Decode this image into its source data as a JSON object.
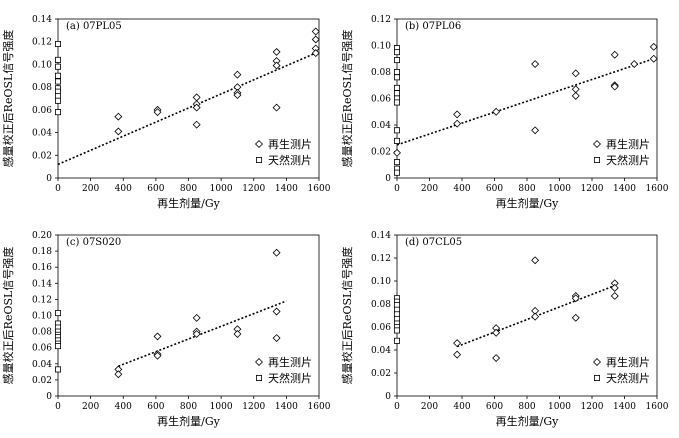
{
  "chart_data": [
    {
      "type": "scatter",
      "panel_label": "(a) 07PL05",
      "xlabel": "再生剂量/Gy",
      "ylabel": "感量校正后ReOSL信号强度",
      "xlim": [
        0,
        1600
      ],
      "ylim": [
        0,
        0.14
      ],
      "x_ticks": [
        0,
        200,
        400,
        600,
        800,
        1000,
        1200,
        1400,
        1600
      ],
      "y_ticks": [
        0,
        0.02,
        0.04,
        0.06,
        0.08,
        0.1,
        0.12,
        0.14
      ],
      "y_tick_labels": [
        "0",
        "0.02",
        "0.04",
        "0.06",
        "0.08",
        "0.10",
        "0.12",
        "0.14"
      ],
      "series": [
        {
          "name": "再生测片",
          "marker": "diamond",
          "points": [
            [
              370,
              0.054
            ],
            [
              370,
              0.041
            ],
            [
              610,
              0.06
            ],
            [
              610,
              0.058
            ],
            [
              850,
              0.071
            ],
            [
              850,
              0.065
            ],
            [
              850,
              0.062
            ],
            [
              850,
              0.047
            ],
            [
              1100,
              0.091
            ],
            [
              1100,
              0.08
            ],
            [
              1100,
              0.075
            ],
            [
              1100,
              0.073
            ],
            [
              1340,
              0.111
            ],
            [
              1340,
              0.103
            ],
            [
              1340,
              0.099
            ],
            [
              1340,
              0.062
            ],
            [
              1580,
              0.129
            ],
            [
              1580,
              0.122
            ],
            [
              1580,
              0.114
            ],
            [
              1580,
              0.11
            ]
          ]
        },
        {
          "name": "天然测片",
          "marker": "square",
          "points": [
            [
              0,
              0.118
            ],
            [
              0,
              0.104
            ],
            [
              0,
              0.098
            ],
            [
              0,
              0.09
            ],
            [
              0,
              0.085
            ],
            [
              0,
              0.079
            ],
            [
              0,
              0.076
            ],
            [
              0,
              0.072
            ],
            [
              0,
              0.068
            ],
            [
              0,
              0.058
            ]
          ]
        }
      ],
      "trend": {
        "x": [
          0,
          1580
        ],
        "y": [
          0.012,
          0.11
        ]
      },
      "legend": {
        "position": "bottom-right"
      }
    },
    {
      "type": "scatter",
      "panel_label": "(b) 07PL06",
      "xlabel": "再生剂量/Gy",
      "ylabel": "感量校正后ReOSL信号强度",
      "xlim": [
        0,
        1600
      ],
      "ylim": [
        0,
        0.12
      ],
      "x_ticks": [
        0,
        200,
        400,
        600,
        800,
        1000,
        1200,
        1400,
        1600
      ],
      "y_ticks": [
        0,
        0.02,
        0.04,
        0.06,
        0.08,
        0.1,
        0.12
      ],
      "y_tick_labels": [
        "0",
        "0.02",
        "0.04",
        "0.06",
        "0.08",
        "0.10",
        "0.12"
      ],
      "series": [
        {
          "name": "再生测片",
          "marker": "diamond",
          "points": [
            [
              0,
              0.019
            ],
            [
              370,
              0.048
            ],
            [
              370,
              0.041
            ],
            [
              610,
              0.05
            ],
            [
              850,
              0.086
            ],
            [
              850,
              0.036
            ],
            [
              1100,
              0.079
            ],
            [
              1100,
              0.067
            ],
            [
              1100,
              0.062
            ],
            [
              1340,
              0.093
            ],
            [
              1340,
              0.07
            ],
            [
              1340,
              0.069
            ],
            [
              1460,
              0.086
            ],
            [
              1580,
              0.099
            ],
            [
              1580,
              0.09
            ]
          ]
        },
        {
          "name": "天然测片",
          "marker": "square",
          "points": [
            [
              0,
              0.098
            ],
            [
              0,
              0.095
            ],
            [
              0,
              0.089
            ],
            [
              0,
              0.08
            ],
            [
              0,
              0.076
            ],
            [
              0,
              0.068
            ],
            [
              0,
              0.064
            ],
            [
              0,
              0.06
            ],
            [
              0,
              0.057
            ],
            [
              0,
              0.036
            ],
            [
              0,
              0.028
            ],
            [
              0,
              0.012
            ],
            [
              0,
              0.007
            ],
            [
              0,
              0.004
            ]
          ]
        }
      ],
      "trend": {
        "x": [
          0,
          1580
        ],
        "y": [
          0.025,
          0.09
        ]
      },
      "legend": {
        "position": "bottom-right"
      }
    },
    {
      "type": "scatter",
      "panel_label": "(c) 07S020",
      "xlabel": "再生剂量/Gy",
      "ylabel": "感量校正后ReOSL信号强度",
      "xlim": [
        0,
        1600
      ],
      "ylim": [
        0,
        0.2
      ],
      "x_ticks": [
        0,
        200,
        400,
        600,
        800,
        1000,
        1200,
        1400,
        1600
      ],
      "y_ticks": [
        0,
        0.02,
        0.04,
        0.06,
        0.08,
        0.1,
        0.12,
        0.14,
        0.16,
        0.18,
        0.2
      ],
      "y_tick_labels": [
        "0",
        "0.02",
        "0.04",
        "0.06",
        "0.08",
        "0.10",
        "0.12",
        "0.14",
        "0.16",
        "0.18",
        "0.20"
      ],
      "series": [
        {
          "name": "再生测片",
          "marker": "diamond",
          "points": [
            [
              370,
              0.033
            ],
            [
              370,
              0.027
            ],
            [
              610,
              0.074
            ],
            [
              610,
              0.052
            ],
            [
              610,
              0.05
            ],
            [
              850,
              0.097
            ],
            [
              850,
              0.08
            ],
            [
              850,
              0.077
            ],
            [
              1100,
              0.083
            ],
            [
              1100,
              0.077
            ],
            [
              1340,
              0.178
            ],
            [
              1340,
              0.105
            ],
            [
              1340,
              0.072
            ]
          ]
        },
        {
          "name": "天然测片",
          "marker": "square",
          "points": [
            [
              0,
              0.103
            ],
            [
              0,
              0.09
            ],
            [
              0,
              0.085
            ],
            [
              0,
              0.08
            ],
            [
              0,
              0.076
            ],
            [
              0,
              0.073
            ],
            [
              0,
              0.069
            ],
            [
              0,
              0.065
            ],
            [
              0,
              0.062
            ],
            [
              0,
              0.033
            ]
          ]
        }
      ],
      "trend": {
        "x": [
          370,
          1400
        ],
        "y": [
          0.037,
          0.118
        ]
      },
      "legend": {
        "position": "bottom-right"
      }
    },
    {
      "type": "scatter",
      "panel_label": "(d) 07CL05",
      "xlabel": "再生剂量/Gy",
      "ylabel": "感量校正后ReOSL信号强度",
      "xlim": [
        0,
        1600
      ],
      "ylim": [
        0,
        0.14
      ],
      "x_ticks": [
        0,
        200,
        400,
        600,
        800,
        1000,
        1200,
        1400,
        1600
      ],
      "y_ticks": [
        0,
        0.02,
        0.04,
        0.06,
        0.08,
        0.1,
        0.12,
        0.14
      ],
      "y_tick_labels": [
        "0",
        "0.02",
        "0.04",
        "0.06",
        "0.08",
        "0.10",
        "0.12",
        "0.14"
      ],
      "series": [
        {
          "name": "再生测片",
          "marker": "diamond",
          "points": [
            [
              370,
              0.046
            ],
            [
              370,
              0.036
            ],
            [
              610,
              0.059
            ],
            [
              610,
              0.055
            ],
            [
              610,
              0.033
            ],
            [
              850,
              0.118
            ],
            [
              850,
              0.074
            ],
            [
              850,
              0.069
            ],
            [
              1100,
              0.087
            ],
            [
              1100,
              0.085
            ],
            [
              1100,
              0.068
            ],
            [
              1340,
              0.098
            ],
            [
              1340,
              0.094
            ],
            [
              1340,
              0.087
            ]
          ]
        },
        {
          "name": "天然测片",
          "marker": "square",
          "points": [
            [
              0,
              0.085
            ],
            [
              0,
              0.082
            ],
            [
              0,
              0.079
            ],
            [
              0,
              0.075
            ],
            [
              0,
              0.071
            ],
            [
              0,
              0.067
            ],
            [
              0,
              0.063
            ],
            [
              0,
              0.06
            ],
            [
              0,
              0.057
            ],
            [
              0,
              0.048
            ]
          ]
        }
      ],
      "trend": {
        "x": [
          370,
          1340
        ],
        "y": [
          0.043,
          0.096
        ]
      },
      "legend": {
        "position": "bottom-right"
      }
    }
  ]
}
